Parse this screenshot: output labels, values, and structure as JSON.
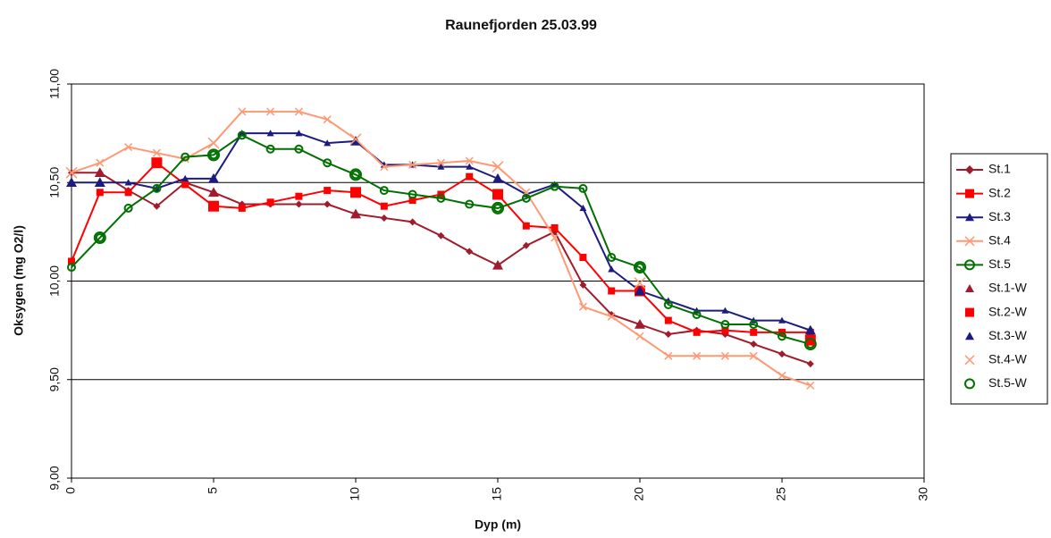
{
  "chart_data": {
    "type": "line",
    "title": "Raunefjorden 25.03.99",
    "x_label": "Dyp (m)",
    "y_label": "Oksygen (mg O2/l)",
    "xlim": [
      0,
      30
    ],
    "xticks": [
      0,
      5,
      10,
      15,
      20,
      25,
      30
    ],
    "ylim": [
      9,
      11
    ],
    "yticks": [
      {
        "value": 9,
        "label": "9,00"
      },
      {
        "value": 9.5,
        "label": "9,50"
      },
      {
        "value": 10,
        "label": "10,00"
      },
      {
        "value": 10.5,
        "label": "10,50"
      },
      {
        "value": 11,
        "label": "11,00"
      }
    ],
    "grid": true,
    "legend": "right",
    "x": [
      0,
      1,
      2,
      3,
      4,
      5,
      6,
      7,
      8,
      9,
      10,
      11,
      12,
      13,
      14,
      15,
      16,
      17,
      18,
      19,
      20,
      21,
      22,
      23,
      24,
      25,
      26
    ],
    "series": [
      {
        "name": "St.1",
        "color": "#a01c2c",
        "marker": "diamond",
        "show_line": true,
        "values": [
          10.55,
          10.55,
          10.46,
          10.38,
          10.5,
          10.45,
          10.39,
          10.39,
          10.39,
          10.39,
          10.34,
          10.32,
          10.3,
          10.23,
          10.15,
          10.08,
          10.18,
          10.25,
          9.98,
          9.83,
          9.78,
          9.73,
          9.75,
          9.73,
          9.68,
          9.63,
          9.58
        ]
      },
      {
        "name": "St.2",
        "color": "#ff0000",
        "marker": "square",
        "show_line": true,
        "values": [
          10.1,
          10.45,
          10.45,
          10.6,
          10.49,
          10.38,
          10.37,
          10.4,
          10.43,
          10.46,
          10.45,
          10.38,
          10.41,
          10.44,
          10.53,
          10.44,
          10.28,
          10.27,
          10.12,
          9.95,
          9.95,
          9.8,
          9.74,
          9.75,
          9.74,
          9.74,
          9.74
        ]
      },
      {
        "name": "St.3",
        "color": "#1c1c80",
        "marker": "triangle",
        "show_line": true,
        "values": [
          10.5,
          10.5,
          10.5,
          10.47,
          10.52,
          10.52,
          10.75,
          10.75,
          10.75,
          10.7,
          10.71,
          10.59,
          10.59,
          10.58,
          10.58,
          10.52,
          10.44,
          10.49,
          10.37,
          10.06,
          9.95,
          9.9,
          9.85,
          9.85,
          9.8,
          9.8,
          9.75
        ]
      },
      {
        "name": "St.4",
        "color": "#ff9973",
        "marker": "x",
        "show_line": true,
        "values": [
          10.55,
          10.6,
          10.68,
          10.65,
          10.62,
          10.7,
          10.86,
          10.86,
          10.86,
          10.82,
          10.72,
          10.58,
          10.59,
          10.6,
          10.61,
          10.58,
          10.45,
          10.22,
          9.87,
          9.82,
          9.72,
          9.62,
          9.62,
          9.62,
          9.62,
          9.52,
          9.47
        ]
      },
      {
        "name": "St.5",
        "color": "#007000",
        "marker": "circle",
        "show_line": true,
        "values": [
          10.07,
          10.22,
          10.37,
          10.47,
          10.63,
          10.64,
          10.74,
          10.67,
          10.67,
          10.6,
          10.54,
          10.46,
          10.44,
          10.42,
          10.39,
          10.37,
          10.42,
          10.48,
          10.47,
          10.12,
          10.07,
          9.88,
          9.83,
          9.78,
          9.78,
          9.72,
          9.68
        ]
      },
      {
        "name": "St.1-W",
        "color": "#a01c2c",
        "marker": "triangle",
        "show_line": false,
        "x": [
          1,
          5,
          10,
          15,
          20
        ],
        "values": [
          10.55,
          10.45,
          10.34,
          10.08,
          9.78
        ]
      },
      {
        "name": "St.2-W",
        "color": "#ff0000",
        "marker": "square",
        "show_line": false,
        "x": [
          3,
          5,
          10,
          15,
          20,
          26
        ],
        "values": [
          10.6,
          10.38,
          10.45,
          10.44,
          9.95,
          9.7
        ]
      },
      {
        "name": "St.3-W",
        "color": "#1c1c80",
        "marker": "triangle",
        "show_line": false,
        "x": [
          0,
          1,
          5,
          10,
          15,
          20,
          26
        ],
        "values": [
          10.5,
          10.5,
          10.52,
          10.71,
          10.52,
          9.95,
          9.75
        ]
      },
      {
        "name": "St.4-W",
        "color": "#ff9973",
        "marker": "x",
        "show_line": false,
        "x": [
          0,
          5,
          10,
          15,
          20
        ],
        "values": [
          10.55,
          10.7,
          10.72,
          10.58,
          9.99
        ]
      },
      {
        "name": "St.5-W",
        "color": "#007000",
        "marker": "circle",
        "show_line": false,
        "x": [
          1,
          5,
          10,
          15,
          20,
          26
        ],
        "values": [
          10.22,
          10.64,
          10.54,
          10.37,
          10.07,
          9.68
        ]
      }
    ]
  }
}
